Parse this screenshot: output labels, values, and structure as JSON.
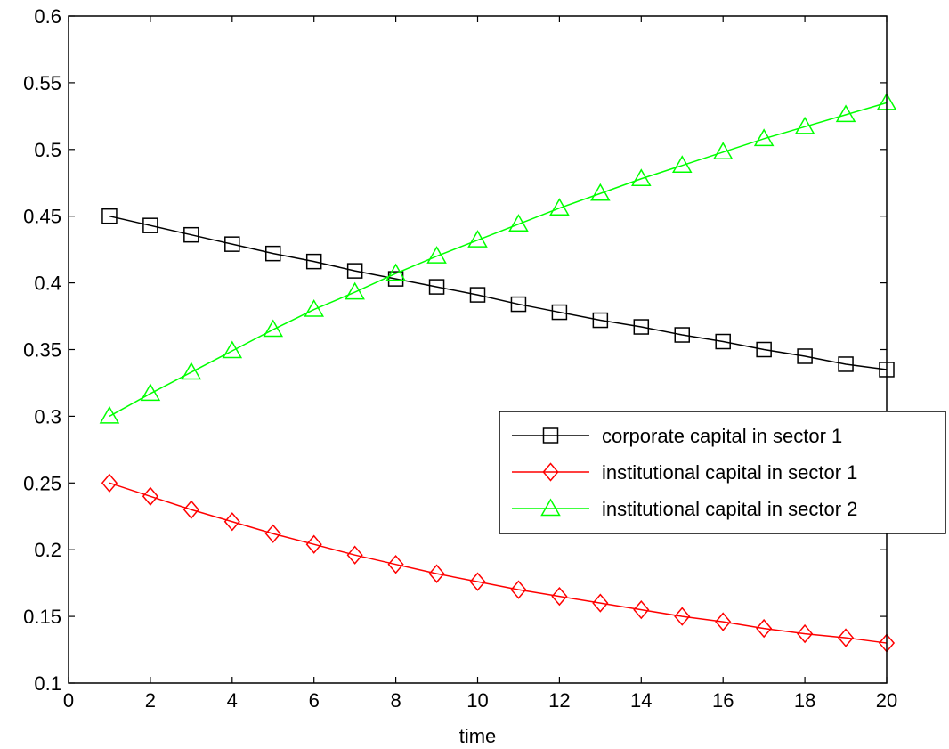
{
  "chart_data": {
    "type": "line",
    "title": "",
    "xlabel": "time",
    "ylabel": "",
    "xlim": [
      0,
      20
    ],
    "ylim": [
      0.1,
      0.6
    ],
    "xticks": [
      0,
      2,
      4,
      6,
      8,
      10,
      12,
      14,
      16,
      18,
      20
    ],
    "yticks": [
      0.1,
      0.15,
      0.2,
      0.25,
      0.3,
      0.35,
      0.4,
      0.45,
      0.5,
      0.55,
      0.6
    ],
    "xtick_labels": [
      "0",
      "2",
      "4",
      "6",
      "8",
      "10",
      "12",
      "14",
      "16",
      "18",
      "20"
    ],
    "ytick_labels": [
      "0.1",
      "0.15",
      "0.2",
      "0.25",
      "0.3",
      "0.35",
      "0.4",
      "0.45",
      "0.5",
      "0.55",
      "0.6"
    ],
    "grid": false,
    "legend_position": "right",
    "x": [
      1,
      2,
      3,
      4,
      5,
      6,
      7,
      8,
      9,
      10,
      11,
      12,
      13,
      14,
      15,
      16,
      17,
      18,
      19,
      20
    ],
    "series": [
      {
        "name": "corporate capital in sector 1",
        "color": "#000000",
        "marker": "square",
        "values": [
          0.45,
          0.443,
          0.436,
          0.429,
          0.422,
          0.416,
          0.409,
          0.403,
          0.397,
          0.391,
          0.384,
          0.378,
          0.372,
          0.367,
          0.361,
          0.356,
          0.35,
          0.345,
          0.339,
          0.335
        ]
      },
      {
        "name": "institutional capital in sector 1",
        "color": "#ff0000",
        "marker": "diamond",
        "values": [
          0.25,
          0.24,
          0.23,
          0.221,
          0.212,
          0.204,
          0.196,
          0.189,
          0.182,
          0.176,
          0.17,
          0.165,
          0.16,
          0.155,
          0.15,
          0.146,
          0.141,
          0.137,
          0.134,
          0.13
        ]
      },
      {
        "name": "institutional capital in sector 2",
        "color": "#00ff00",
        "marker": "triangle",
        "values": [
          0.3,
          0.317,
          0.333,
          0.349,
          0.365,
          0.38,
          0.393,
          0.407,
          0.42,
          0.432,
          0.444,
          0.456,
          0.467,
          0.478,
          0.488,
          0.498,
          0.508,
          0.517,
          0.526,
          0.535
        ]
      }
    ]
  }
}
